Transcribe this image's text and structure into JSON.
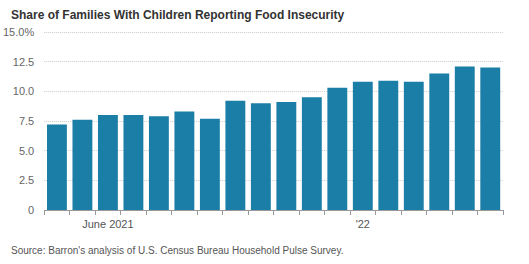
{
  "chart_data": {
    "type": "bar",
    "title": "Share of Families With Children Reporting Food Insecurity",
    "source": "Source: Barron's analysis of U.S. Census Bureau Household Pulse Survey.",
    "categories": [
      null,
      null,
      "June 2021",
      null,
      null,
      null,
      null,
      null,
      null,
      null,
      null,
      null,
      "'22",
      null,
      null,
      null,
      null,
      null
    ],
    "values": [
      7.2,
      7.6,
      8.0,
      8.0,
      7.9,
      8.3,
      7.7,
      9.2,
      9.0,
      9.1,
      9.5,
      10.3,
      10.8,
      10.9,
      10.8,
      11.5,
      12.1,
      12.0
    ],
    "color": "#1b7ea6",
    "ylim": [
      0,
      15
    ],
    "yticks": [
      0,
      2.5,
      {
        "value": 5,
        "label": "5.0"
      },
      {
        "value": 7.5,
        "label": "7.5"
      },
      {
        "value": 10,
        "label": "10.0"
      },
      {
        "value": 12.5,
        "label": "12.5"
      },
      {
        "value": 15,
        "label": "15.0%"
      }
    ],
    "grid": true
  }
}
